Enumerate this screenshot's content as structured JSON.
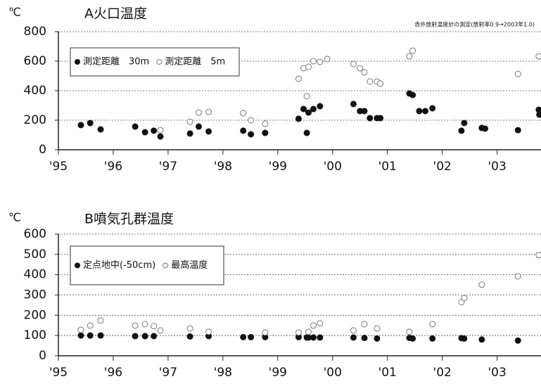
{
  "chart_data": [
    {
      "type": "scatter",
      "title": "A火口温度",
      "y_label": "℃",
      "annotation": "赤外放射温度計の測定(放射率0.9→2003年1.0)",
      "xlim": [
        1995,
        2003.8
      ],
      "ylim": [
        0,
        800
      ],
      "xticks": [
        {
          "value": 1995,
          "label": "'95"
        },
        {
          "value": 1996,
          "label": "'96"
        },
        {
          "value": 1997,
          "label": "'97"
        },
        {
          "value": 1998,
          "label": "'98"
        },
        {
          "value": 1999,
          "label": "'99"
        },
        {
          "value": 2000,
          "label": "'00"
        },
        {
          "value": 2001,
          "label": "'01"
        },
        {
          "value": 2002,
          "label": "'02"
        },
        {
          "value": 2003,
          "label": "'03"
        }
      ],
      "yticks": [
        0,
        200,
        400,
        600,
        800
      ],
      "grid": true,
      "legend": "upper left",
      "series": [
        {
          "name": "測定距離　30m",
          "color": "#111111",
          "marker": "filled",
          "x": [
            1995.41,
            1995.58,
            1995.77,
            1996.4,
            1996.58,
            1996.74,
            1996.86,
            1997.4,
            1997.56,
            1997.74,
            1998.37,
            1998.51,
            1998.77,
            1999.38,
            1999.47,
            1999.53,
            1999.56,
            1999.65,
            1999.77,
            2000.38,
            2000.5,
            2000.58,
            2000.68,
            2000.81,
            2000.87,
            2001.4,
            2001.46,
            2001.58,
            2001.69,
            2001.82,
            2002.35,
            2002.4,
            2002.72,
            2002.78,
            2003.38,
            2003.76,
            2003.77
          ],
          "values": [
            167,
            181,
            138,
            157,
            119,
            129,
            90,
            110,
            157,
            124,
            129,
            105,
            114,
            210,
            276,
            114,
            252,
            276,
            295,
            310,
            262,
            262,
            214,
            214,
            214,
            381,
            371,
            262,
            262,
            281,
            129,
            181,
            148,
            143,
            133,
            271,
            238
          ]
        },
        {
          "name": "測定距離　5m",
          "color": "#111111",
          "marker": "open",
          "x": [
            1996.86,
            1997.4,
            1997.56,
            1997.74,
            1998.37,
            1998.51,
            1998.77,
            1999.38,
            1999.47,
            1999.53,
            1999.56,
            1999.65,
            1999.77,
            1999.9,
            2000.38,
            2000.5,
            2000.58,
            2000.68,
            2000.81,
            2000.87,
            2001.4,
            2001.46,
            2003.38,
            2003.76
          ],
          "values": [
            133,
            190,
            252,
            257,
            248,
            200,
            176,
            481,
            552,
            362,
            562,
            600,
            595,
            614,
            581,
            552,
            524,
            462,
            462,
            448,
            633,
            671,
            514,
            633
          ]
        }
      ]
    },
    {
      "type": "scatter",
      "title": "B噴気孔群温度",
      "y_label": "℃",
      "xlim": [
        1995,
        2003.8
      ],
      "ylim": [
        0,
        600
      ],
      "xticks": [
        {
          "value": 1995,
          "label": "'95"
        },
        {
          "value": 1996,
          "label": "'96"
        },
        {
          "value": 1997,
          "label": "'97"
        },
        {
          "value": 1998,
          "label": "'98"
        },
        {
          "value": 1999,
          "label": "'99"
        },
        {
          "value": 2000,
          "label": "'00"
        },
        {
          "value": 2001,
          "label": "'01"
        },
        {
          "value": 2002,
          "label": "'02"
        },
        {
          "value": 2003,
          "label": "'03"
        }
      ],
      "yticks": [
        0,
        100,
        200,
        300,
        400,
        500,
        600
      ],
      "grid": true,
      "legend": "upper left",
      "series": [
        {
          "name": "定点地中(-50cm)",
          "color": "#111111",
          "marker": "filled",
          "x": [
            1995.41,
            1995.58,
            1995.77,
            1996.4,
            1996.58,
            1996.74,
            1997.4,
            1997.74,
            1998.37,
            1998.51,
            1998.77,
            1999.38,
            1999.53,
            1999.56,
            1999.65,
            1999.77,
            2000.38,
            2000.58,
            2000.81,
            2001.4,
            2001.46,
            2001.82,
            2002.35,
            2002.4,
            2002.72,
            2003.38
          ],
          "values": [
            100,
            100,
            100,
            97,
            97,
            97,
            95,
            97,
            92,
            92,
            92,
            92,
            90,
            90,
            90,
            90,
            90,
            88,
            85,
            88,
            85,
            85,
            87,
            85,
            80,
            75
          ]
        },
        {
          "name": "最高温度",
          "color": "#111111",
          "marker": "open",
          "x": [
            1995.41,
            1995.58,
            1995.77,
            1996.4,
            1996.58,
            1996.74,
            1996.86,
            1997.4,
            1997.74,
            1998.77,
            1999.38,
            1999.56,
            1999.65,
            1999.77,
            2000.38,
            2000.58,
            2000.81,
            2001.4,
            2001.82,
            2002.35,
            2002.4,
            2002.72,
            2003.38,
            2003.76
          ],
          "values": [
            128,
            149,
            174,
            149,
            156,
            146,
            125,
            135,
            118,
            115,
            115,
            118,
            149,
            160,
            125,
            156,
            135,
            118,
            156,
            264,
            285,
            351,
            392,
            497
          ]
        }
      ]
    }
  ]
}
